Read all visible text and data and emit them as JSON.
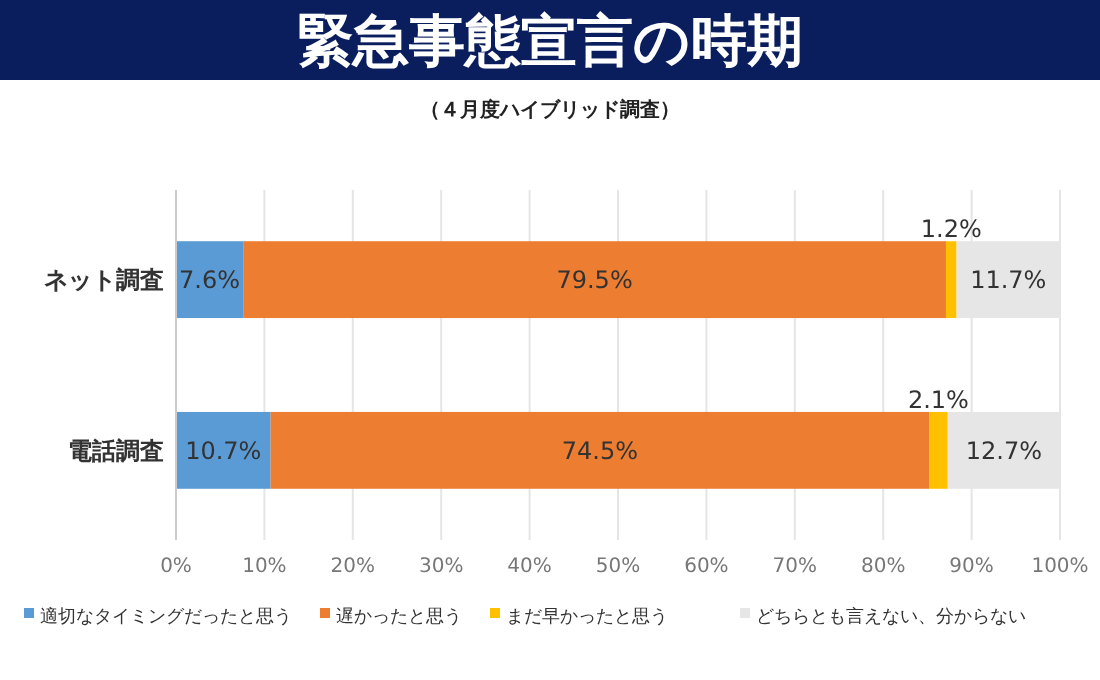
{
  "chart_data": {
    "type": "bar",
    "orientation": "horizontal",
    "stacked": true,
    "title": "緊急事態宣言の時期",
    "subtitle": "（４月度ハイブリッド調査）",
    "categories": [
      "ネット調査",
      "電話調査"
    ],
    "series": [
      {
        "name": "適切なタイミングだったと思う",
        "color": "#5b9bd5",
        "values": [
          7.6,
          10.7
        ],
        "value_labels": [
          "7.6%",
          "10.7%"
        ]
      },
      {
        "name": "遅かったと思う",
        "color": "#ed7d31",
        "values": [
          79.5,
          74.5
        ],
        "value_labels": [
          "79.5%",
          "74.5%"
        ]
      },
      {
        "name": "まだ早かったと思う",
        "color": "#ffc000",
        "values": [
          1.2,
          2.1
        ],
        "value_labels": [
          "1.2%",
          "2.1%"
        ]
      },
      {
        "name": "どちらとも言えない、分からない",
        "color": "#e7e6e6",
        "values": [
          11.7,
          12.7
        ],
        "value_labels": [
          "11.7%",
          "12.7%"
        ]
      }
    ],
    "xlim": [
      0,
      100
    ],
    "xticks": [
      {
        "value": 0,
        "label": "0%"
      },
      {
        "value": 10,
        "label": "10%"
      },
      {
        "value": 20,
        "label": "20%"
      },
      {
        "value": 30,
        "label": "30%"
      },
      {
        "value": 40,
        "label": "40%"
      },
      {
        "value": 50,
        "label": "50%"
      },
      {
        "value": 60,
        "label": "60%"
      },
      {
        "value": 70,
        "label": "70%"
      },
      {
        "value": 80,
        "label": "80%"
      },
      {
        "value": 90,
        "label": "90%"
      },
      {
        "value": 100,
        "label": "100%"
      }
    ],
    "grid": "x",
    "legend": "bottom"
  }
}
